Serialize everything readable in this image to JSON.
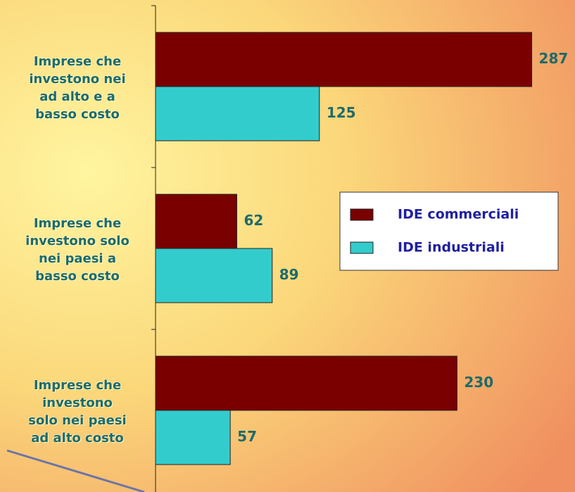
{
  "chart_data": {
    "type": "bar",
    "orientation": "horizontal",
    "categories": [
      "Imprese che\ninvestono nei\nad alto e a\nbasso costo",
      "Imprese che\ninvestono solo\nnei paesi a\nbasso costo",
      "Imprese che\ninvestono\nsolo nei paesi\nad alto costo"
    ],
    "series": [
      {
        "name": "IDE commerciali",
        "color": "#7a0000",
        "values": [
          287,
          62,
          230
        ]
      },
      {
        "name": "IDE industriali",
        "color": "#33cccc",
        "values": [
          125,
          89,
          57
        ]
      }
    ],
    "xlim": [
      0,
      320
    ],
    "xticks": [],
    "legend": "right"
  }
}
